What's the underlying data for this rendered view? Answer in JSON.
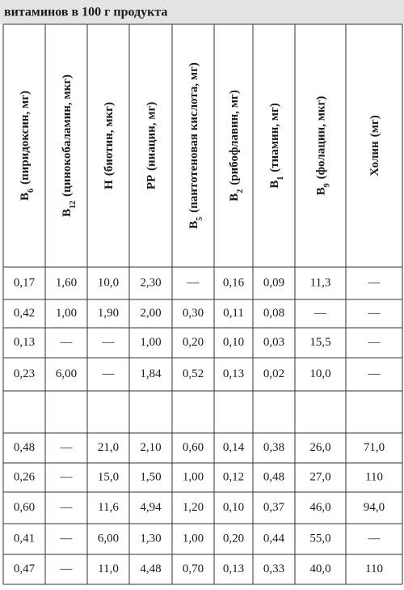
{
  "header": {
    "title": "витаминов в 100 г продукта"
  },
  "table": {
    "columns": [
      {
        "name": "B",
        "sub": "6",
        "detail": "(пиридоксин, мг)"
      },
      {
        "name": "B",
        "sub": "12",
        "detail": "(цинокобаламин, мкг)"
      },
      {
        "name": "H",
        "detail": "(биотин, мкг)"
      },
      {
        "name": "PP",
        "detail": "(ниацин, мг)"
      },
      {
        "name": "B",
        "sub": "5",
        "detail": "(пантотеновая кислота, мг)"
      },
      {
        "name": "B",
        "sub": "2",
        "detail": "(рибофлавин, мг)"
      },
      {
        "name": "B",
        "sub": "1",
        "detail": "(тиамин, мг)"
      },
      {
        "name": "B",
        "sub": "9",
        "detail": "(фолацин, мкг)"
      },
      {
        "name": "Холин",
        "detail": "(мг)"
      }
    ],
    "groups": [
      {
        "rows": [
          [
            "0,17",
            "1,60",
            "10,0",
            "2,30",
            "—",
            "0,16",
            "0,09",
            "11,3",
            "—"
          ],
          [
            "0,42",
            "1,00",
            "1,90",
            "2,00",
            "0,30",
            "0,11",
            "0,08",
            "—",
            "—"
          ],
          [
            "0,13",
            "—",
            "—",
            "1,00",
            "0,20",
            "0,10",
            "0,03",
            "15,5",
            "—"
          ],
          [
            "0,23",
            "6,00",
            "—",
            "1,84",
            "0,52",
            "0,13",
            "0,02",
            "10,0",
            "—"
          ]
        ]
      },
      {
        "rows": [
          [
            "0,48",
            "—",
            "21,0",
            "2,10",
            "0,60",
            "0,14",
            "0,38",
            "26,0",
            "71,0"
          ],
          [
            "0,26",
            "—",
            "15,0",
            "1,50",
            "1,00",
            "0,12",
            "0,48",
            "27,0",
            "110"
          ],
          [
            "0,60",
            "—",
            "11,6",
            "4,94",
            "1,20",
            "0,10",
            "0,37",
            "46,0",
            "94,0"
          ],
          [
            "0,41",
            "—",
            "6,00",
            "1,30",
            "1,00",
            "0,20",
            "0,44",
            "55,0",
            "—"
          ],
          [
            "0,47",
            "—",
            "11,0",
            "4,48",
            "0,70",
            "0,13",
            "0,33",
            "40,0",
            "110"
          ]
        ]
      }
    ]
  }
}
